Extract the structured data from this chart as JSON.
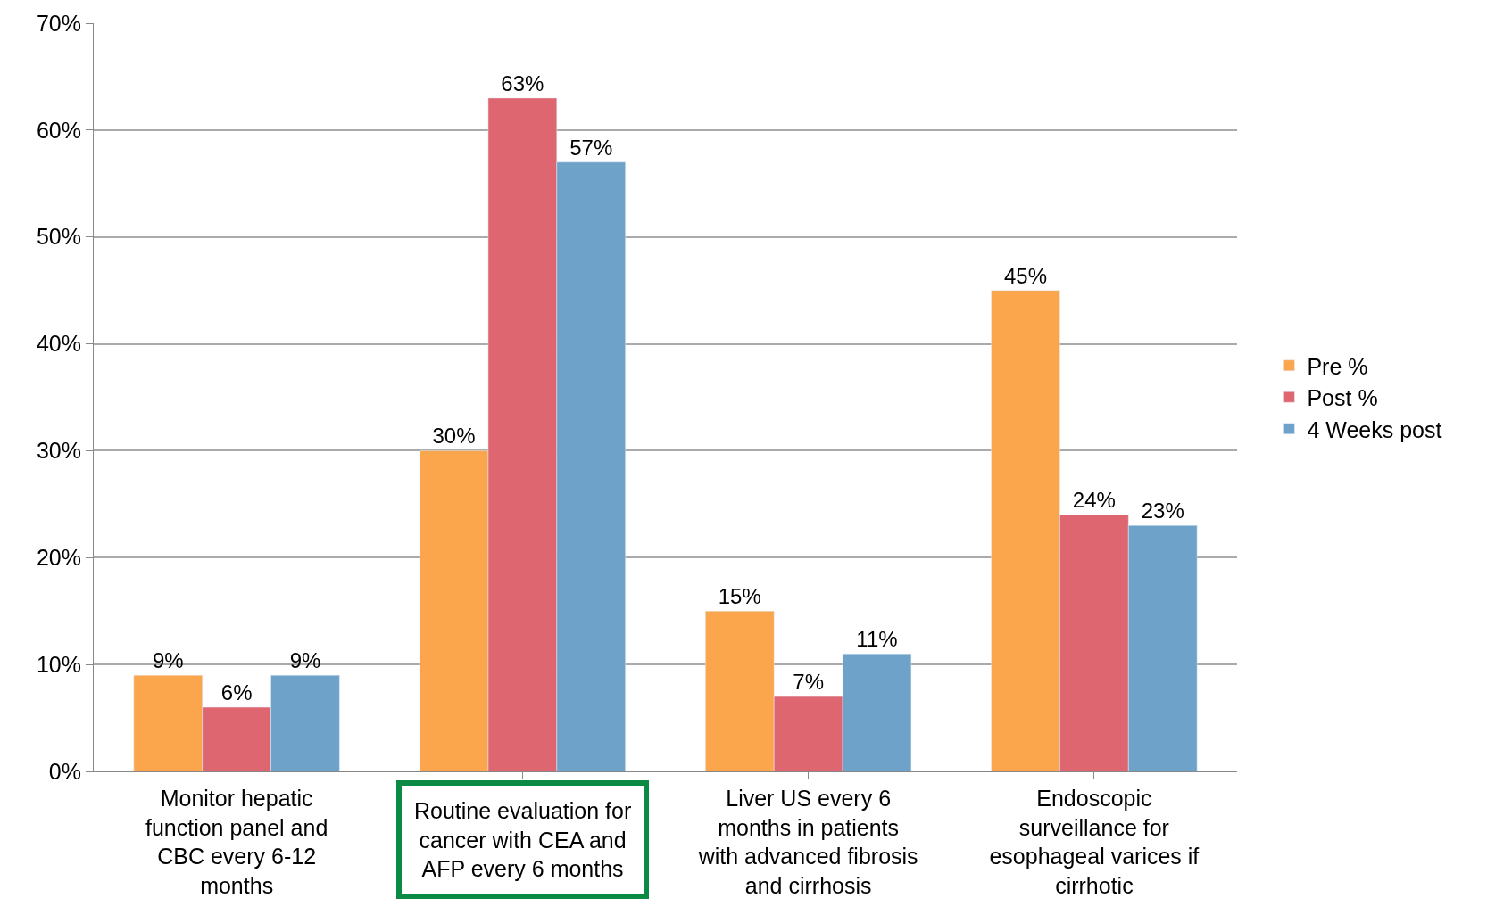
{
  "chart_data": {
    "type": "bar",
    "categories": [
      "Monitor hepatic\nfunction panel and\nCBC every 6-12\nmonths",
      "Routine evaluation for\ncancer with CEA and\nAFP every 6 months",
      "Liver US every 6\nmonths in patients\nwith advanced fibrosis\nand cirrhosis",
      "Endoscopic\nsurveillance for\nesophageal varices if\ncirrhotic"
    ],
    "series": [
      {
        "name": "Pre %",
        "color": "#fba54c",
        "values": [
          9,
          30,
          15,
          45
        ],
        "value_labels": [
          "9%",
          "30%",
          "15%",
          "45%"
        ]
      },
      {
        "name": "Post %",
        "color": "#de6670",
        "values": [
          6,
          63,
          7,
          24
        ],
        "value_labels": [
          "6%",
          "63%",
          "7%",
          "24%"
        ]
      },
      {
        "name": "4 Weeks post",
        "color": "#6fa2c8",
        "values": [
          9,
          57,
          11,
          23
        ],
        "value_labels": [
          "9%",
          "57%",
          "11%",
          "23%"
        ]
      }
    ],
    "ylim": [
      0,
      70
    ],
    "yticks": [
      {
        "value": 0,
        "label": "0%"
      },
      {
        "value": 10,
        "label": "10%"
      },
      {
        "value": 20,
        "label": "20%"
      },
      {
        "value": 30,
        "label": "30%"
      },
      {
        "value": 40,
        "label": "40%"
      },
      {
        "value": 50,
        "label": "50%"
      },
      {
        "value": 60,
        "label": "60%"
      },
      {
        "value": 70,
        "label": "70%"
      }
    ],
    "grid": "y",
    "legend": "right"
  }
}
